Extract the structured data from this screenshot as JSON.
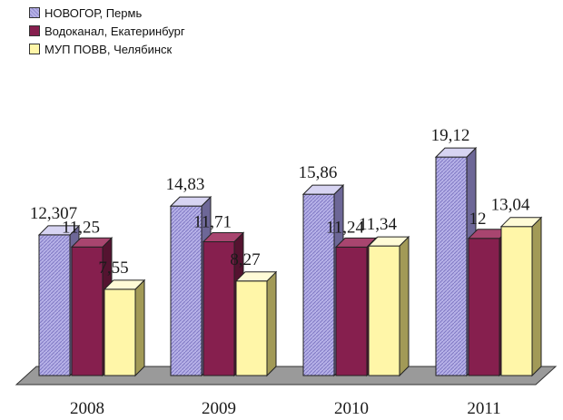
{
  "legend": [
    {
      "label": "НОВОГОР, Пермь",
      "color": "#a9a3e0"
    },
    {
      "label": "Водоканал, Екатеринбург",
      "color": "#861f4e"
    },
    {
      "label": "МУП ПОВВ, Челябинск",
      "color": "#fff6a8"
    }
  ],
  "chart_data": {
    "type": "bar",
    "categories": [
      "2008",
      "2009",
      "2010",
      "2011"
    ],
    "series": [
      {
        "name": "НОВОГОР, Пермь",
        "values": [
          12.307,
          14.83,
          15.86,
          19.12
        ],
        "labels": [
          "12,307",
          "14,83",
          "15,86",
          "19,12"
        ],
        "color": "#a9a3e0"
      },
      {
        "name": "Водоканал, Екатеринбург",
        "values": [
          11.25,
          11.71,
          11.24,
          12
        ],
        "labels": [
          "11,25",
          "11,71",
          "11,24",
          "12"
        ],
        "color": "#861f4e"
      },
      {
        "name": "МУП ПОВВ, Челябинск",
        "values": [
          7.55,
          8.27,
          11.34,
          13.04
        ],
        "labels": [
          "7,55",
          "8,27",
          "11,34",
          "13,04"
        ],
        "color": "#fff6a8"
      }
    ],
    "ylim": [
      0,
      20
    ],
    "grid": false,
    "legend_position": "top-left"
  }
}
